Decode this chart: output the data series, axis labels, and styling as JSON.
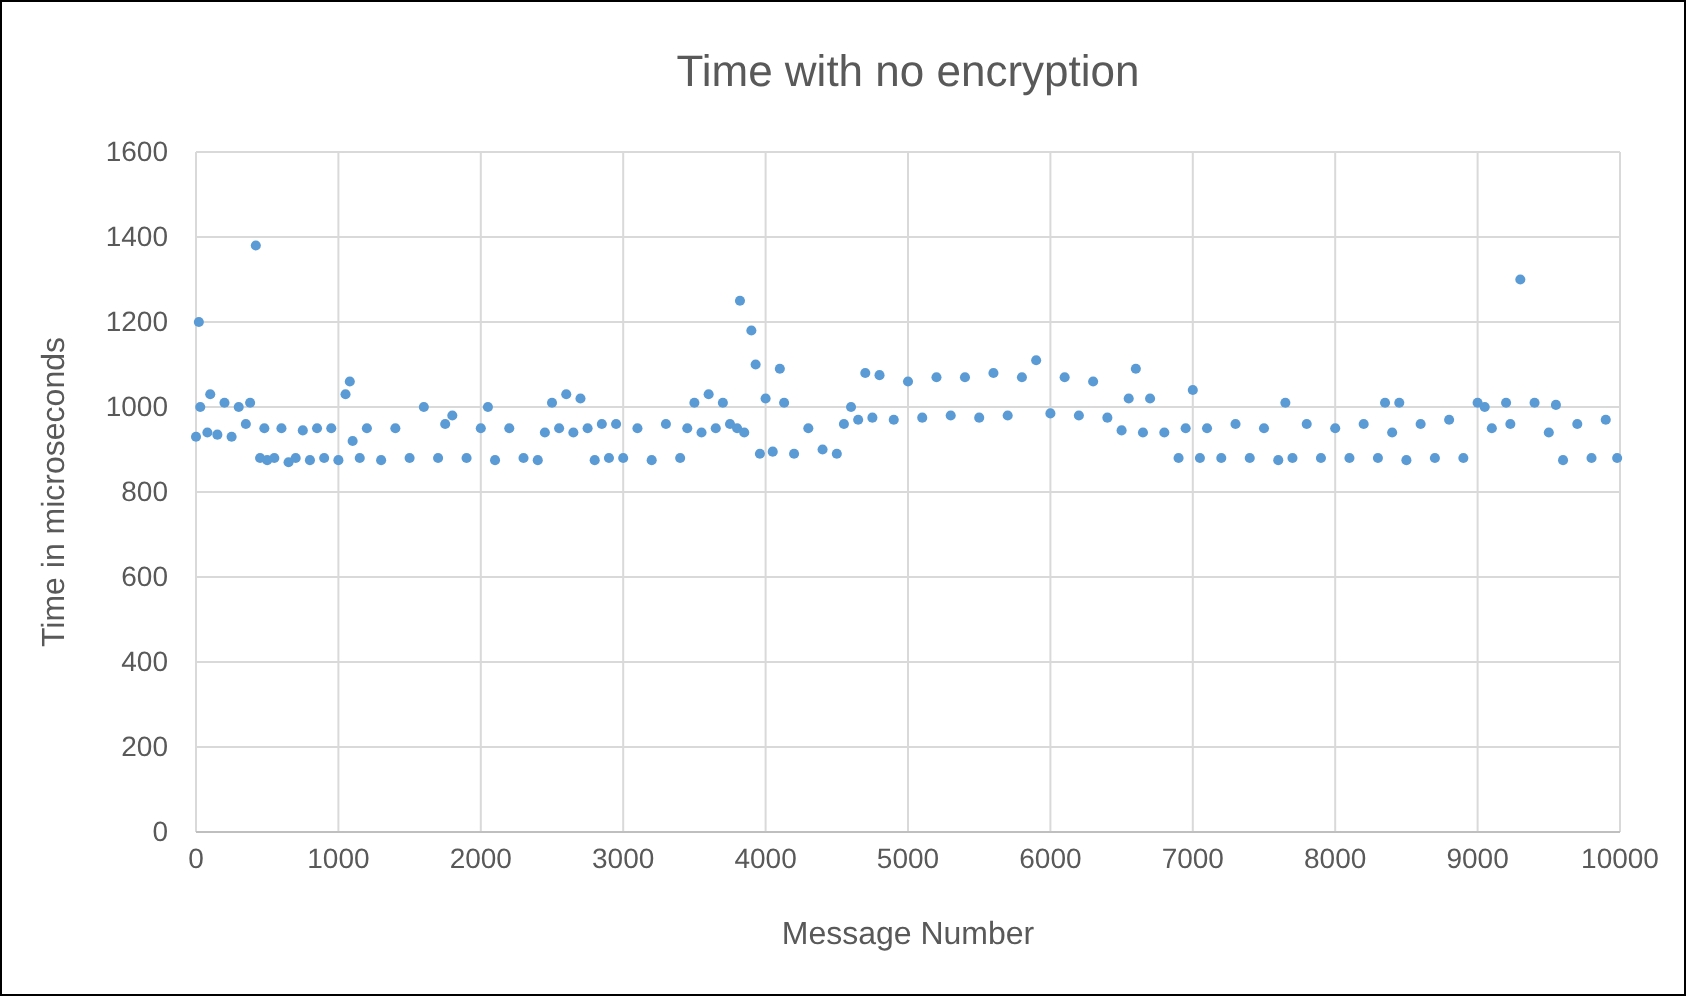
{
  "chart_data": {
    "type": "scatter",
    "title": "Time with no encryption",
    "xlabel": "Message Number",
    "ylabel": "Time in microseconds",
    "color": "#5b9bd5",
    "marker": "circle",
    "grid": true,
    "xlim": [
      0,
      10000
    ],
    "ylim": [
      0,
      1600
    ],
    "xticks": [
      0,
      1000,
      2000,
      3000,
      4000,
      5000,
      6000,
      7000,
      8000,
      9000,
      10000
    ],
    "yticks": [
      0,
      200,
      400,
      600,
      800,
      1000,
      1200,
      1400,
      1600
    ],
    "x": [
      0,
      20,
      30,
      80,
      100,
      150,
      200,
      250,
      300,
      350,
      380,
      420,
      450,
      480,
      500,
      550,
      600,
      650,
      700,
      750,
      800,
      850,
      900,
      950,
      1000,
      1050,
      1080,
      1100,
      1150,
      1200,
      1300,
      1400,
      1500,
      1600,
      1700,
      1750,
      1800,
      1900,
      2000,
      2050,
      2100,
      2200,
      2300,
      2400,
      2450,
      2500,
      2550,
      2600,
      2650,
      2700,
      2750,
      2800,
      2850,
      2900,
      2950,
      3000,
      3100,
      3200,
      3300,
      3400,
      3450,
      3500,
      3550,
      3600,
      3650,
      3700,
      3750,
      3800,
      3820,
      3850,
      3900,
      3930,
      3960,
      4000,
      4050,
      4100,
      4130,
      4200,
      4300,
      4400,
      4500,
      4550,
      4600,
      4650,
      4700,
      4750,
      4800,
      4900,
      5000,
      5100,
      5200,
      5300,
      5400,
      5500,
      5600,
      5700,
      5800,
      5900,
      6000,
      6100,
      6200,
      6300,
      6400,
      6500,
      6550,
      6600,
      6650,
      6700,
      6800,
      6900,
      6950,
      7000,
      7050,
      7100,
      7200,
      7300,
      7400,
      7500,
      7600,
      7650,
      7700,
      7800,
      7900,
      8000,
      8100,
      8200,
      8300,
      8350,
      8400,
      8450,
      8500,
      8600,
      8700,
      8800,
      8900,
      9000,
      9050,
      9100,
      9200,
      9230,
      9300,
      9400,
      9500,
      9550,
      9600,
      9700,
      9800,
      9900,
      9980
    ],
    "values": [
      930,
      1200,
      1000,
      940,
      1030,
      935,
      1010,
      930,
      1000,
      960,
      1010,
      1380,
      880,
      950,
      875,
      880,
      950,
      870,
      880,
      945,
      875,
      950,
      880,
      950,
      875,
      1030,
      1060,
      920,
      880,
      950,
      875,
      950,
      880,
      1000,
      880,
      960,
      980,
      880,
      950,
      1000,
      875,
      950,
      880,
      875,
      940,
      1010,
      950,
      1030,
      940,
      1020,
      950,
      875,
      960,
      880,
      960,
      880,
      950,
      875,
      960,
      880,
      950,
      1010,
      940,
      1030,
      950,
      1010,
      960,
      950,
      1250,
      940,
      1180,
      1100,
      890,
      1020,
      895,
      1090,
      1010,
      890,
      950,
      900,
      890,
      960,
      1000,
      970,
      1080,
      975,
      1075,
      970,
      1060,
      975,
      1070,
      980,
      1070,
      975,
      1080,
      980,
      1070,
      1110,
      985,
      1070,
      980,
      1060,
      975,
      945,
      1020,
      1090,
      940,
      1020,
      940,
      880,
      950,
      1040,
      880,
      950,
      880,
      960,
      880,
      950,
      875,
      1010,
      880,
      960,
      880,
      950,
      880,
      960,
      880,
      1010,
      940,
      1010,
      875,
      960,
      880,
      970,
      880,
      1010,
      1000,
      950,
      1010,
      960,
      1300,
      1010,
      940,
      1005,
      875,
      960,
      880,
      970,
      880
    ]
  }
}
